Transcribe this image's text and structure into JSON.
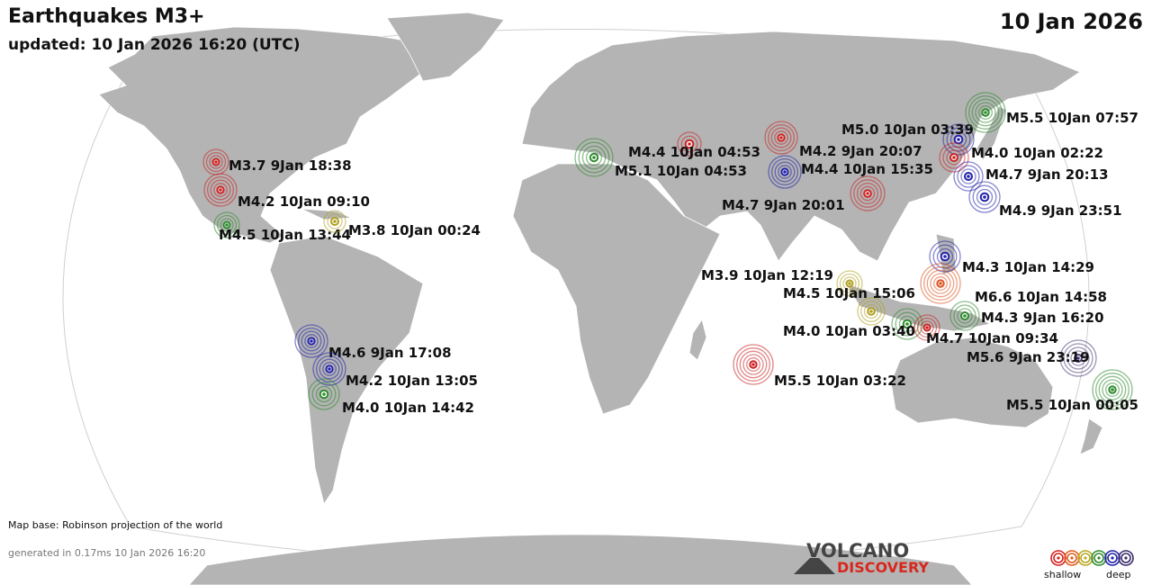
{
  "header": {
    "title": "Earthquakes M3+",
    "updated": "updated: 10 Jan 2026 16:20 (UTC)",
    "date": "10 Jan 2026"
  },
  "footer": {
    "map_base": "Map base: Robinson projection of the world",
    "generated": "generated in 0.17ms 10 Jan 2026 16:20"
  },
  "logo": {
    "line1": "VOLCANO",
    "line2": "DISCOVERY"
  },
  "legend": {
    "shallow": "shallow",
    "deep": "deep",
    "depth_colors": [
      "#d22020",
      "#e05a1e",
      "#b7a81e",
      "#2e8b2e",
      "#2020a8",
      "#3a2a6a"
    ]
  },
  "colors": {
    "ocean": "#ffffff",
    "land": "#b4b4b4",
    "coast": "#ffffff"
  },
  "quakes": [
    {
      "label": "M3.7  9Jan 18:38",
      "depth": "red"
    },
    {
      "label": "M4.2 10Jan 09:10",
      "depth": "red"
    },
    {
      "label": "M4.5 10Jan 13:44",
      "depth": "green"
    },
    {
      "label": "M3.8 10Jan 00:24",
      "depth": "yellow"
    },
    {
      "label": "M4.6  9Jan 17:08",
      "depth": "blue"
    },
    {
      "label": "M4.2 10Jan 13:05",
      "depth": "blue"
    },
    {
      "label": "M4.0 10Jan 14:42",
      "depth": "green"
    },
    {
      "label": "M4.4 10Jan 04:53",
      "depth": "red"
    },
    {
      "label": "M5.1 10Jan 04:53",
      "depth": "green"
    },
    {
      "label": "M4.2  9Jan 20:07",
      "depth": "red"
    },
    {
      "label": "M4.4 10Jan 15:35",
      "depth": "blue"
    },
    {
      "label": "M4.7  9Jan 20:01",
      "depth": "red"
    },
    {
      "label": "M5.0 10Jan 03:39",
      "depth": "blue"
    },
    {
      "label": "M5.5 10Jan 07:57",
      "depth": "green"
    },
    {
      "label": "M4.0 10Jan 02:22",
      "depth": "red"
    },
    {
      "label": "M4.7  9Jan 20:13",
      "depth": "blue"
    },
    {
      "label": "M4.9  9Jan 23:51",
      "depth": "blue"
    },
    {
      "label": "M4.3 10Jan 14:29",
      "depth": "blue"
    },
    {
      "label": "M3.9 10Jan 12:19",
      "depth": "yellow"
    },
    {
      "label": "M4.5 10Jan 15:06",
      "depth": "yellow"
    },
    {
      "label": "M6.6 10Jan 14:58",
      "depth": "orange"
    },
    {
      "label": "M4.3  9Jan 16:20",
      "depth": "green"
    },
    {
      "label": "M4.0 10Jan 03:40",
      "depth": "green"
    },
    {
      "label": "M4.7 10Jan 09:34",
      "depth": "red"
    },
    {
      "label": "M5.6  9Jan 23:19",
      "depth": "purple"
    },
    {
      "label": "M5.5 10Jan 03:22",
      "depth": "red"
    },
    {
      "label": "M5.5 10Jan 00:05",
      "depth": "green"
    }
  ]
}
